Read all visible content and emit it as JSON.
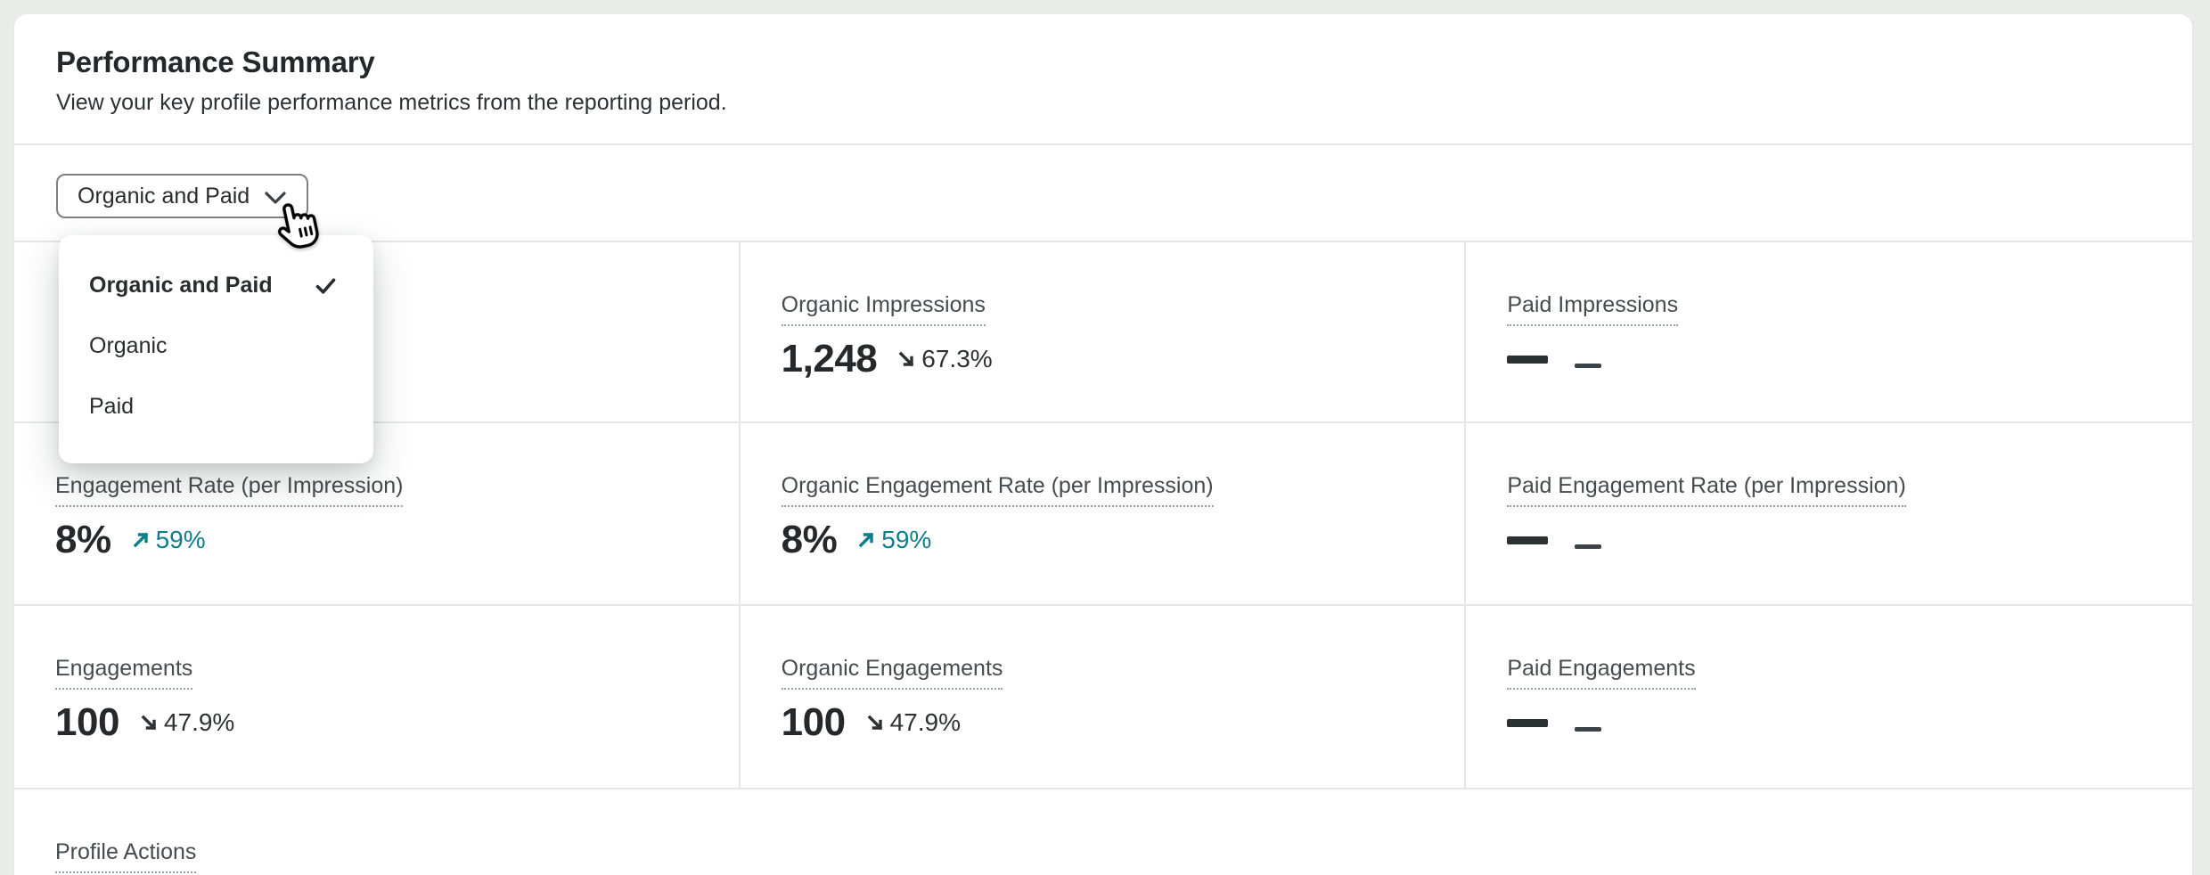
{
  "colors": {
    "accent_teal": "#0e7d8c",
    "text_primary": "#272d2f",
    "text_label": "#454c4f",
    "divider": "#e4e7e5",
    "page_background": "#eaece9",
    "delta_neutral": "#2c3234"
  },
  "header": {
    "title": "Performance Summary",
    "subtitle": "View your key profile performance metrics from the reporting period."
  },
  "toolbar": {
    "filter_button": {
      "label": "Organic and Paid",
      "icon": "chevron-down"
    }
  },
  "dropdown_menu": {
    "items": [
      {
        "label": "Organic and Paid",
        "selected": true
      },
      {
        "label": "Organic",
        "selected": false
      },
      {
        "label": "Paid",
        "selected": false
      }
    ]
  },
  "metrics": {
    "rows": [
      [
        {
          "hidden": true
        },
        {
          "label": "Organic Impressions",
          "value": "1,248",
          "delta": {
            "direction": "down",
            "value": "67.3%"
          }
        },
        {
          "label": "Paid Impressions",
          "placeholder": true
        }
      ],
      [
        {
          "label": "Engagement Rate (per Impression)",
          "value": "8%",
          "delta": {
            "direction": "up",
            "value": "59%"
          }
        },
        {
          "label": "Organic Engagement Rate (per Impression)",
          "value": "8%",
          "delta": {
            "direction": "up",
            "value": "59%"
          }
        },
        {
          "label": "Paid Engagement Rate (per Impression)",
          "placeholder": true
        }
      ],
      [
        {
          "label": "Engagements",
          "value": "100",
          "delta": {
            "direction": "down",
            "value": "47.9%"
          }
        },
        {
          "label": "Organic Engagements",
          "value": "100",
          "delta": {
            "direction": "down",
            "value": "47.9%"
          }
        },
        {
          "label": "Paid Engagements",
          "placeholder": true
        }
      ]
    ],
    "footer_label": "Profile Actions",
    "placeholder_value_dash": "—",
    "placeholder_delta_dash": "–"
  },
  "cursor": {
    "type": "pointer-hand"
  }
}
